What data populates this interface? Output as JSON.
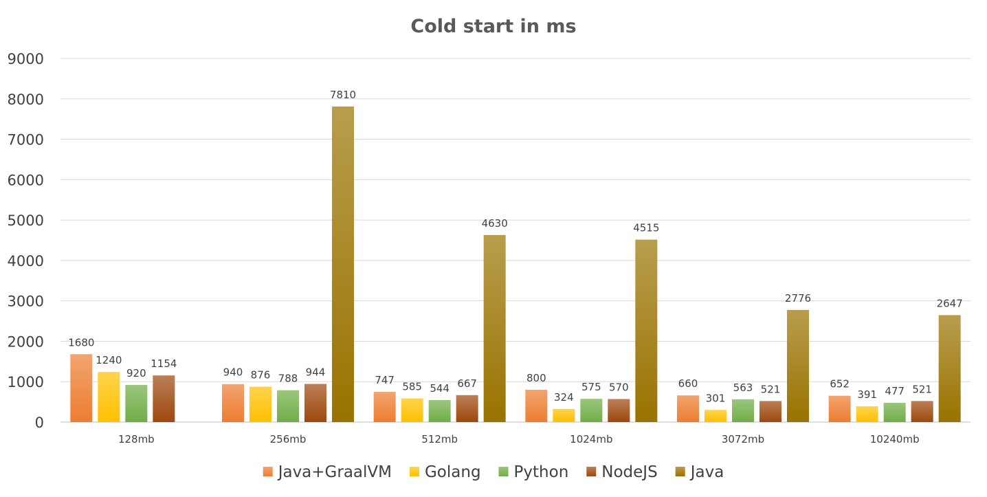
{
  "chart_data": {
    "type": "bar",
    "title": "Cold start in ms",
    "xlabel": "",
    "ylabel": "",
    "ylim": [
      0,
      9000
    ],
    "yticks": [
      0,
      1000,
      2000,
      3000,
      4000,
      5000,
      6000,
      7000,
      8000,
      9000
    ],
    "grid": true,
    "legend_position": "bottom",
    "categories": [
      "128mb",
      "256mb",
      "512mb",
      "1024mb",
      "3072mb",
      "10240mb"
    ],
    "series": [
      {
        "name": "Java+GraalVM",
        "color": "#ed7d31",
        "values": [
          1680,
          940,
          747,
          800,
          660,
          652
        ]
      },
      {
        "name": "Golang",
        "color": "#ffc000",
        "values": [
          1240,
          876,
          585,
          324,
          301,
          391
        ]
      },
      {
        "name": "Python",
        "color": "#70ad47",
        "values": [
          920,
          788,
          544,
          575,
          563,
          477
        ]
      },
      {
        "name": "NodeJS",
        "color": "#9e480e",
        "values": [
          1154,
          944,
          667,
          570,
          521,
          521
        ]
      },
      {
        "name": "Java",
        "color": "#997300",
        "values": [
          null,
          7810,
          4630,
          4515,
          2776,
          2647
        ]
      }
    ]
  }
}
